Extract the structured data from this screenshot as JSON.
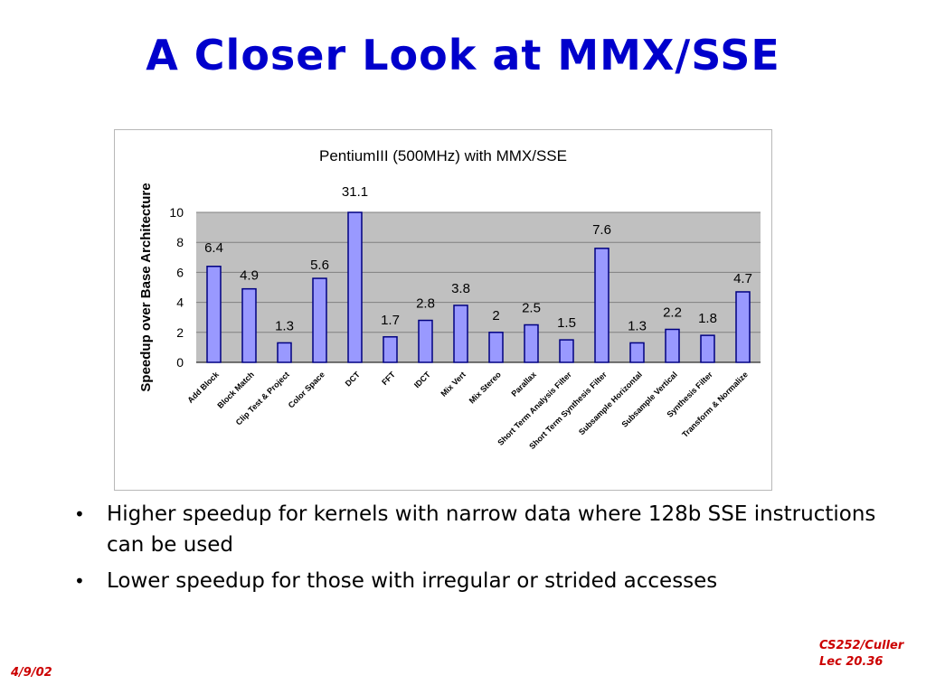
{
  "slide": {
    "title": "A Closer Look at MMX/SSE",
    "bullets": [
      "Higher speedup for kernels with narrow data where 128b SSE instructions can be used",
      "Lower speedup for those with irregular or strided accesses"
    ],
    "footer_date": "4/9/02",
    "footer_course": "CS252/Culler",
    "footer_lecture": "Lec 20.36"
  },
  "chart_data": {
    "type": "bar",
    "title": "PentiumIII (500MHz) with MMX/SSE",
    "xlabel": "",
    "ylabel": "Speedup over Base Architecture",
    "ylim": [
      0,
      10
    ],
    "yticks": [
      "0",
      "2",
      "4",
      "6",
      "8",
      "10"
    ],
    "grid": true,
    "legend": "none",
    "colors": {
      "bar_fill": "#9999ff",
      "bar_stroke": "#000080",
      "plot_bg": "#c0c0c0"
    },
    "categories": [
      "Add Block",
      "Block Match",
      "Clip Test & Project",
      "Color Space",
      "DCT",
      "FFT",
      "IDCT",
      "Mix Vert",
      "Mix Stereo",
      "Parallax",
      "Short Term Analysis Filter",
      "Short Term Synthesis Filter",
      "Subsample Horizontal",
      "Subsample Vertical",
      "Synthesis Filter",
      "Transform & Normalize"
    ],
    "values": [
      6.4,
      4.9,
      1.3,
      5.6,
      31.1,
      1.7,
      2.8,
      3.8,
      2,
      2.5,
      1.5,
      7.6,
      1.3,
      2.2,
      1.8,
      4.7
    ],
    "data_labels": [
      "6.4",
      "4.9",
      "1.3",
      "5.6",
      "31.1",
      "1.7",
      "2.8",
      "3.8",
      "2",
      "2.5",
      "1.5",
      "7.6",
      "1.3",
      "2.2",
      "1.8",
      "4.7"
    ]
  }
}
